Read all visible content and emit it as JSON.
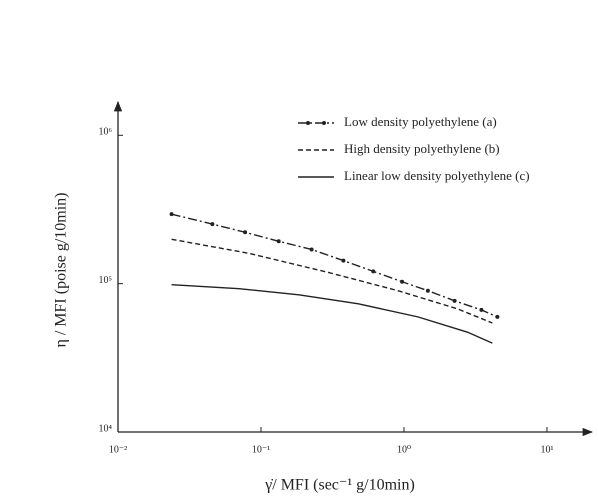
{
  "chart_data": {
    "type": "line",
    "xscale": "log",
    "yscale": "log",
    "xlabel": "γ̇/ MFI (sec⁻¹ g/10min)",
    "ylabel": "η / MFI (poise g/10min)",
    "xlim": [
      0.01,
      20
    ],
    "ylim": [
      10000,
      1600000
    ],
    "xticks": [
      {
        "value": 0.01,
        "label": "10⁻²"
      },
      {
        "value": 0.1,
        "label": "10⁻¹"
      },
      {
        "value": 1,
        "label": "10⁰"
      },
      {
        "value": 10,
        "label": "10¹"
      }
    ],
    "yticks": [
      {
        "value": 10000,
        "label": "10⁴"
      },
      {
        "value": 100000,
        "label": "10⁵"
      },
      {
        "value": 1000000,
        "label": "10⁶"
      }
    ],
    "legend": "top-right",
    "series": [
      {
        "name": "Low density polyethylene (a)",
        "color": "#222222",
        "style": "dash-dot",
        "marker": true,
        "x": [
          0.0237,
          0.0457,
          0.0774,
          0.133,
          0.226,
          0.377,
          0.61,
          0.97,
          1.47,
          2.26,
          3.48,
          4.5
        ],
        "values": [
          294000,
          252000,
          222000,
          193000,
          170000,
          143000,
          121000,
          103000,
          89600,
          76600,
          66500,
          59700
        ]
      },
      {
        "name": "High density polyethylene (b)",
        "color": "#222222",
        "style": "dash",
        "marker": false,
        "x": [
          0.0237,
          0.0826,
          0.296,
          0.908,
          2.37,
          4.15
        ],
        "values": [
          199000,
          160000,
          119000,
          89600,
          67600,
          54300
        ]
      },
      {
        "name": "Linear low density polyethylene (c)",
        "color": "#222222",
        "style": "solid",
        "marker": false,
        "x": [
          0.0237,
          0.0703,
          0.184,
          0.48,
          1.25,
          2.78,
          4.15
        ],
        "values": [
          98400,
          92500,
          84100,
          73100,
          59700,
          47100,
          39700
        ]
      }
    ]
  }
}
